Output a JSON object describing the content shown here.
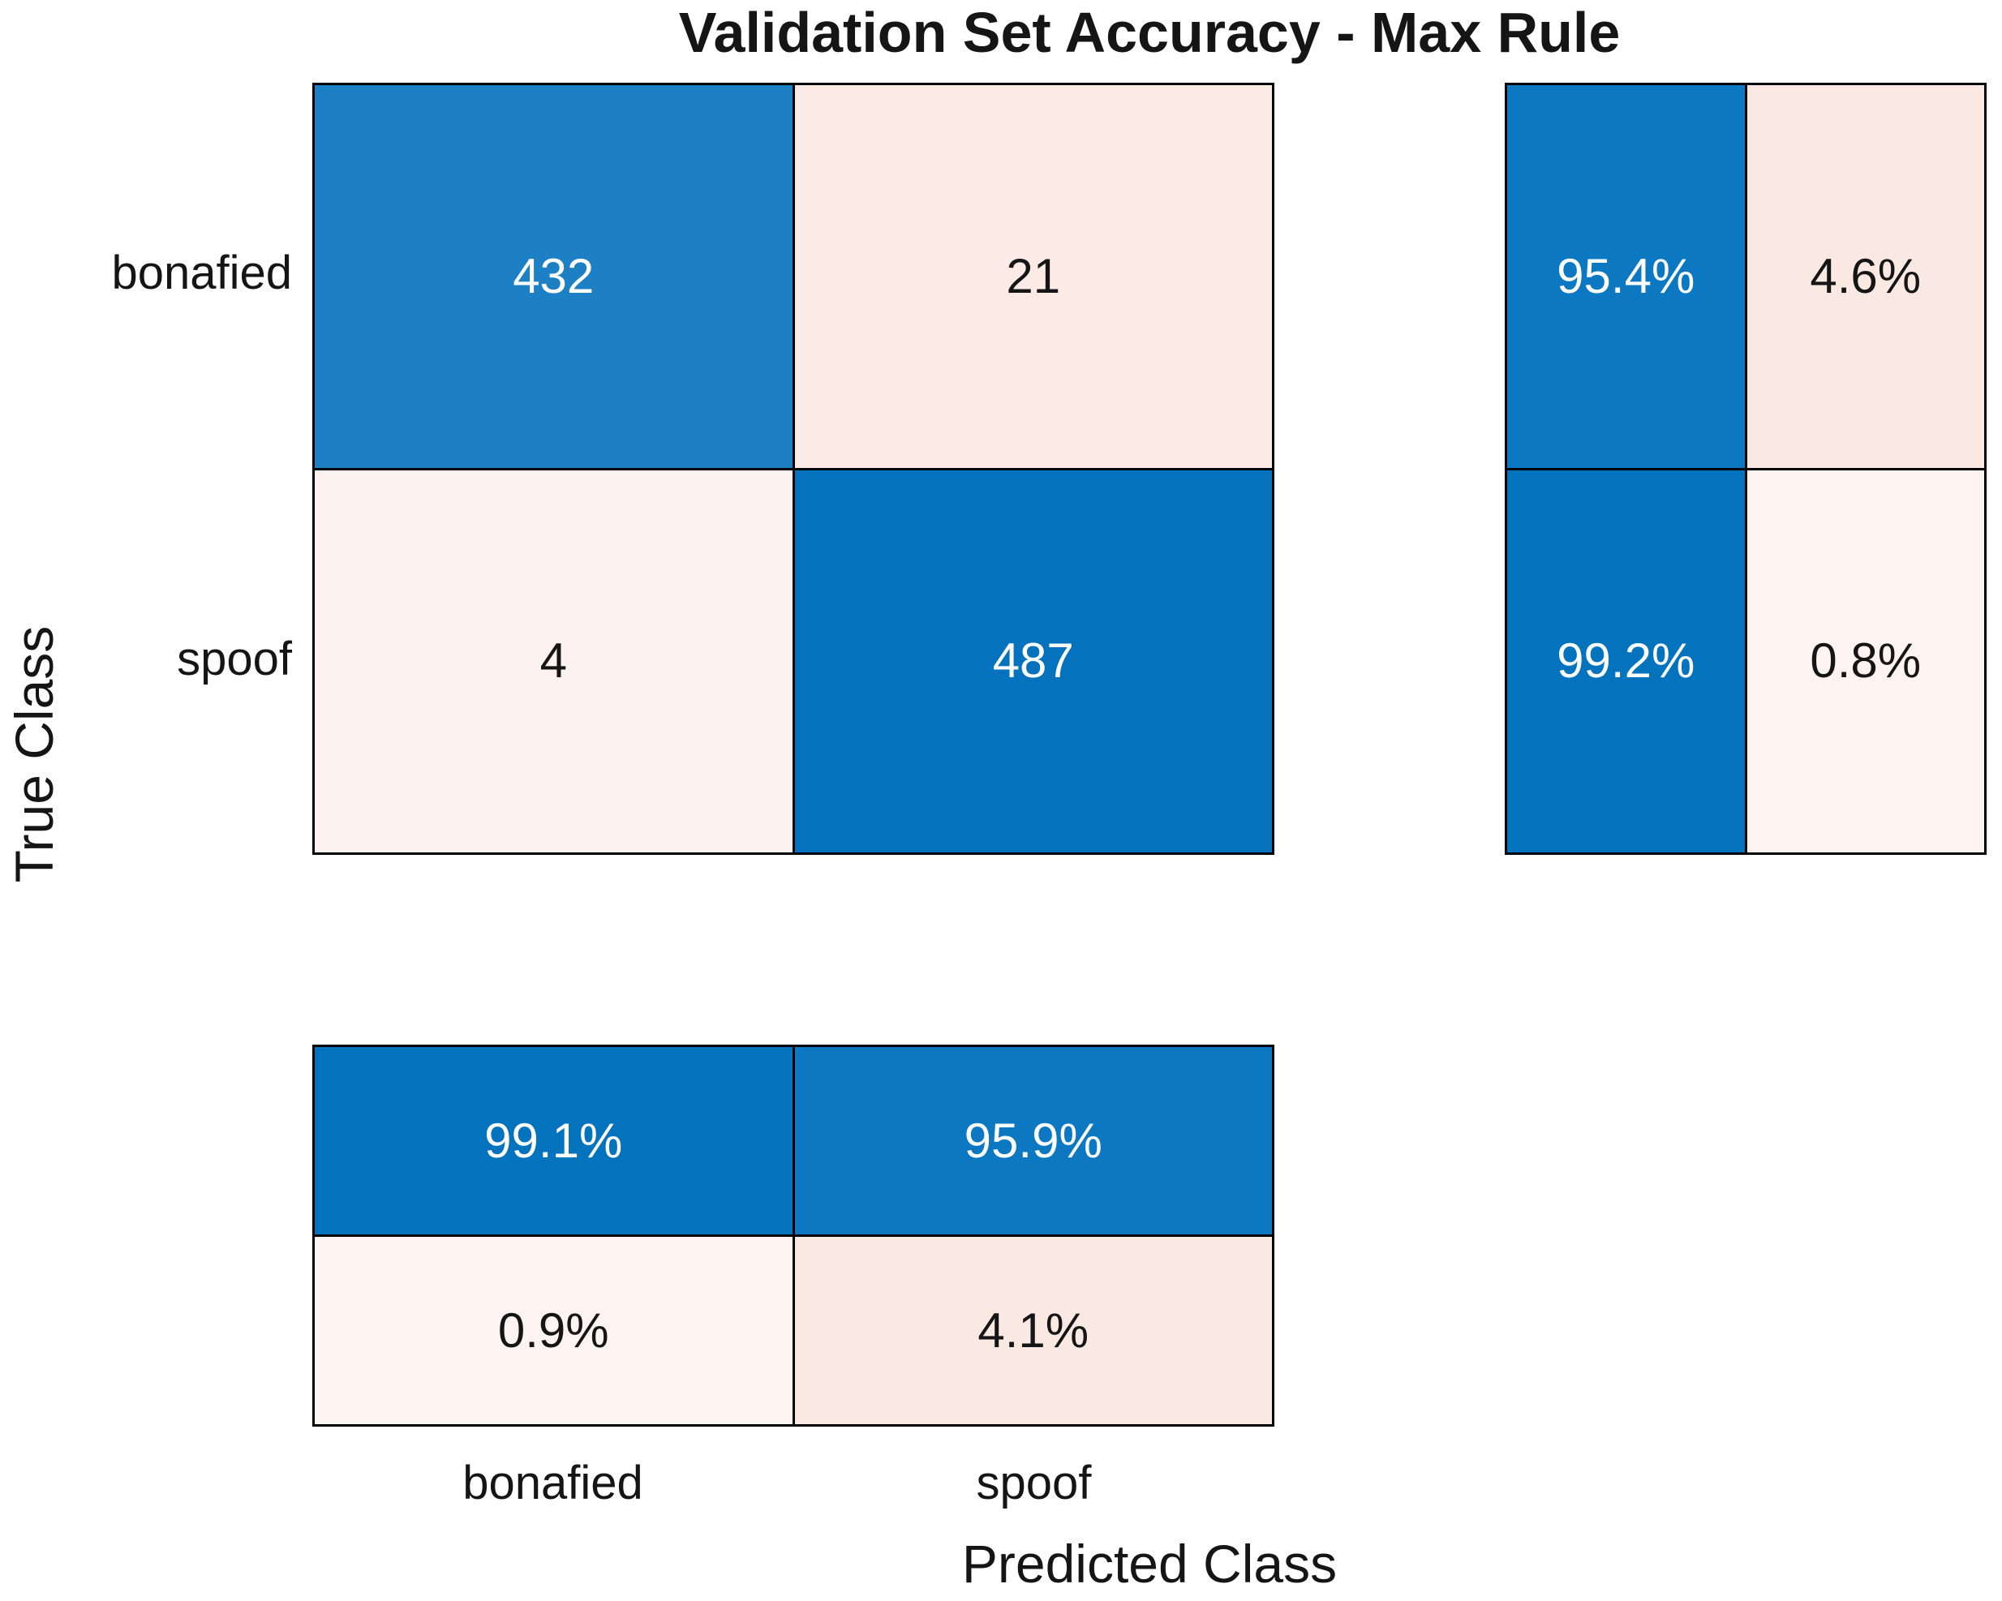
{
  "title": "Validation Set Accuracy - Max Rule",
  "axes": {
    "x_label": "Predicted Class",
    "y_label": "True Class"
  },
  "chart_data": {
    "type": "heatmap",
    "subtype": "confusion-matrix",
    "title": "Validation Set Accuracy - Max Rule",
    "xlabel": "Predicted Class",
    "ylabel": "True Class",
    "classes": [
      "bonafied",
      "spoof"
    ],
    "confusion_matrix": {
      "rows_are_true_class": true,
      "values": [
        [
          432,
          21
        ],
        [
          4,
          487
        ]
      ]
    },
    "row_summary_percent": [
      [
        95.4,
        4.6
      ],
      [
        99.2,
        0.8
      ]
    ],
    "column_summary_percent": [
      [
        99.1,
        0.9
      ],
      [
        95.9,
        4.1
      ]
    ],
    "legend_position": "none",
    "grid": false
  },
  "colors": {
    "diagonal_blue_light": "#1E80C4",
    "diagonal_blue_dark": "#0472BD",
    "summary_blue_light": "#0B78C1",
    "summary_blue_dark": "#0473BE",
    "offdiag_cream_strong": "#F9E9E2",
    "offdiag_cream_mid": "#FBEAE5",
    "offdiag_cream_faint": "#FDF2EF",
    "offdiag_cream_faintest": "#FDF4F1",
    "grid_line": "#000000",
    "text_dark": "#151515",
    "text_light": "#FFFFFF"
  },
  "cells": {
    "main": [
      {
        "text": "432",
        "bg": "#1E80C4",
        "fg": "#FFFFFF"
      },
      {
        "text": "21",
        "bg": "#FBEAE5",
        "fg": "#151515"
      },
      {
        "text": "4",
        "bg": "#FDF2EF",
        "fg": "#151515"
      },
      {
        "text": "487",
        "bg": "#0472BD",
        "fg": "#FFFFFF"
      }
    ],
    "row_summary": [
      {
        "text": "95.4%",
        "bg": "#0B78C1",
        "fg": "#FFFFFF"
      },
      {
        "text": "4.6%",
        "bg": "#F9E9E2",
        "fg": "#151515"
      },
      {
        "text": "99.2%",
        "bg": "#0473BE",
        "fg": "#FFFFFF"
      },
      {
        "text": "0.8%",
        "bg": "#FDF4F1",
        "fg": "#151515"
      }
    ],
    "column_summary": [
      {
        "text": "99.1%",
        "bg": "#0473BE",
        "fg": "#FFFFFF"
      },
      {
        "text": "95.9%",
        "bg": "#0B78C1",
        "fg": "#FFFFFF"
      },
      {
        "text": "0.9%",
        "bg": "#FDF4F1",
        "fg": "#151515"
      },
      {
        "text": "4.1%",
        "bg": "#F9E9E2",
        "fg": "#151515"
      }
    ]
  }
}
